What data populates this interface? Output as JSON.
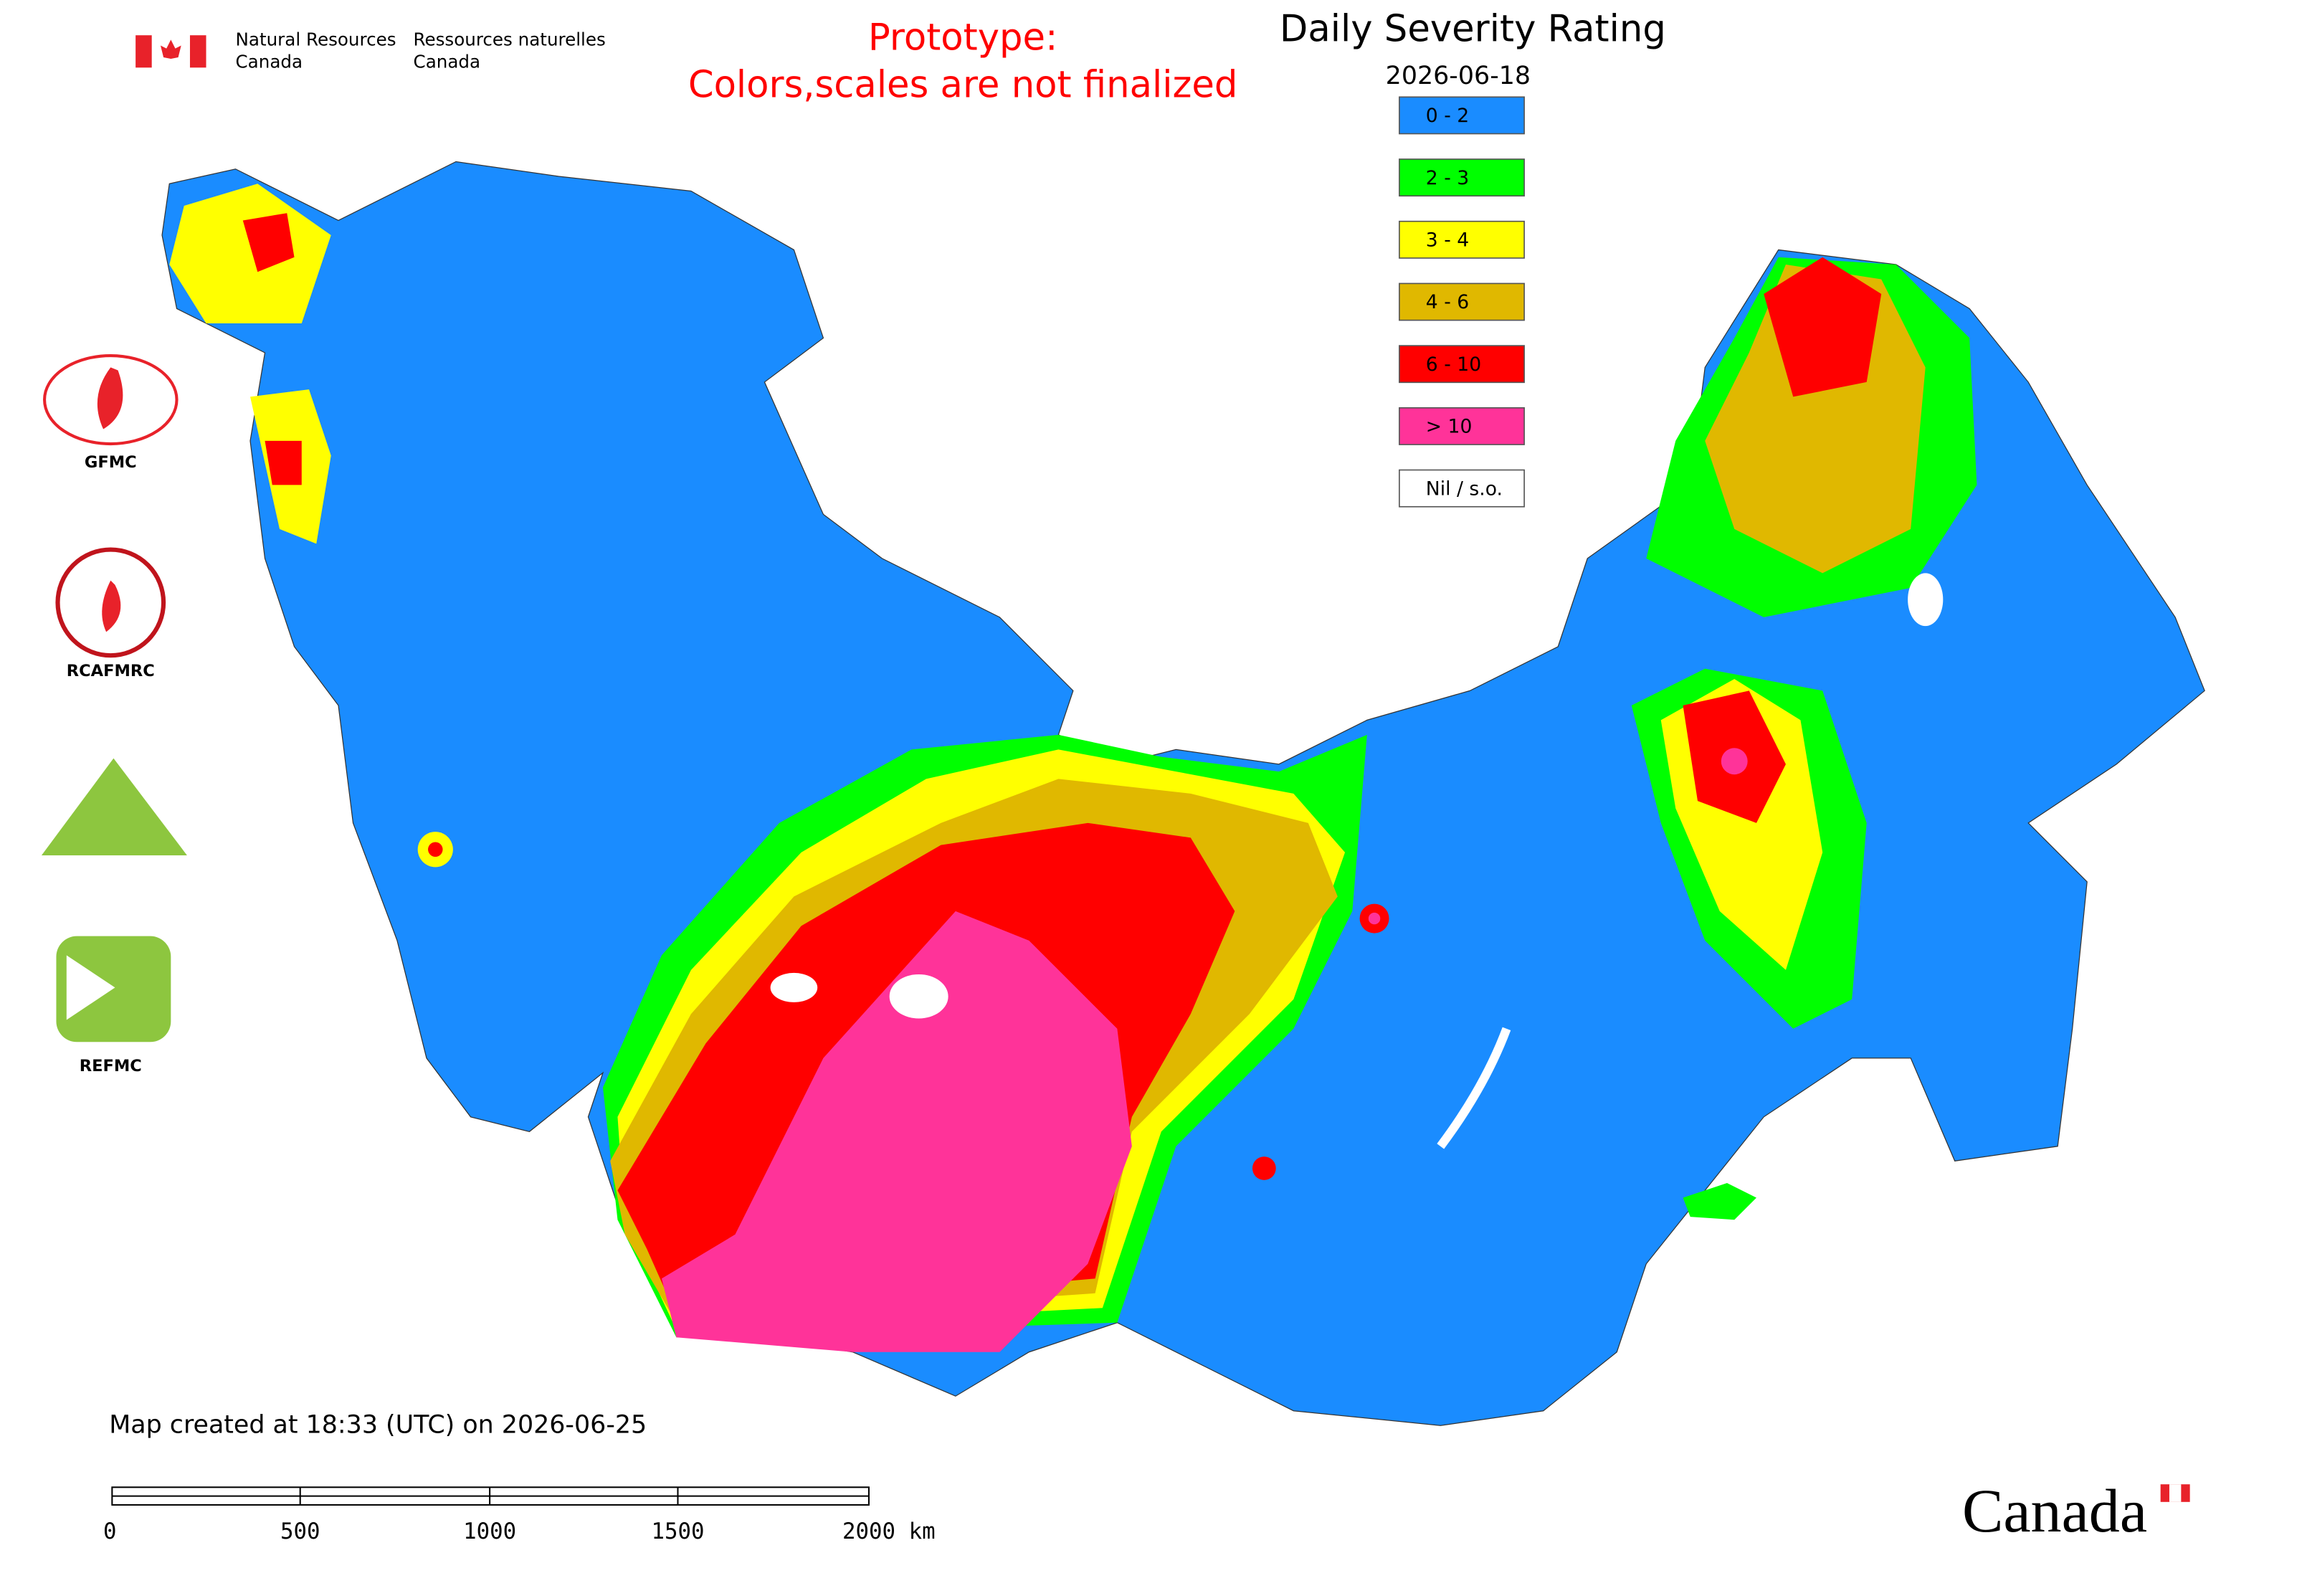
{
  "header": {
    "agency_en": [
      "Natural Resources",
      "Canada"
    ],
    "agency_fr": [
      "Ressources naturelles",
      "Canada"
    ],
    "notice": [
      "Prototype:",
      "Colors,scales are not finalized"
    ]
  },
  "title": "Daily Severity Rating",
  "date": "2026-06-18",
  "legend": [
    {
      "label": "0 - 2",
      "color": "#1a8cff"
    },
    {
      "label": "2 - 3",
      "color": "#00ff00"
    },
    {
      "label": "3 - 4",
      "color": "#ffff00"
    },
    {
      "label": "4 - 6",
      "color": "#e0b800"
    },
    {
      "label": "6 - 10",
      "color": "#ff0000"
    },
    {
      "label": "> 10",
      "color": "#ff3399"
    },
    {
      "label": "Nil / s.o.",
      "color": "#ffffff"
    }
  ],
  "organizations": [
    "GFMC",
    "RCAFMRC",
    "REFMC"
  ],
  "footer": "Map created at 18:33 (UTC) on 2026-06-25",
  "scale_bar": [
    "0",
    "500",
    "1000",
    "1500",
    "2000 km"
  ],
  "wordmark": "Canada"
}
